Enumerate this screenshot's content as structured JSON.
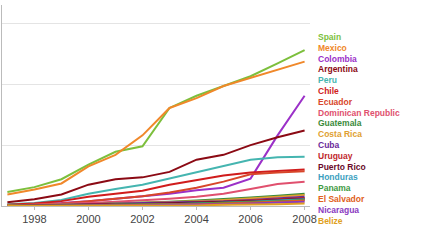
{
  "chart_data": {
    "type": "line",
    "x": [
      1997,
      1998,
      1999,
      2000,
      2001,
      2002,
      2003,
      2004,
      2005,
      2006,
      2007,
      2008
    ],
    "xlim": [
      1996.8,
      2008.2
    ],
    "xticks": [
      1998,
      2000,
      2002,
      2004,
      2006,
      2008
    ],
    "ylim": [
      0,
      330
    ],
    "yticks": [
      0,
      100,
      200,
      300
    ],
    "grid": true,
    "tick_labels": "x",
    "legend": "right",
    "series": [
      {
        "name": "Spain",
        "color": "#7cbf3c",
        "values": [
          23,
          31,
          44,
          68,
          89,
          98,
          161,
          181,
          197,
          213,
          234,
          256
        ]
      },
      {
        "name": "Mexico",
        "color": "#f0882a",
        "values": [
          19,
          27,
          37,
          65,
          84,
          116,
          161,
          177,
          197,
          210,
          224,
          237
        ]
      },
      {
        "name": "Colombia",
        "color": "#9b30c8",
        "values": [
          2,
          3,
          5,
          8,
          12,
          15,
          20,
          26,
          30,
          45,
          116,
          181
        ]
      },
      {
        "name": "Argentina",
        "color": "#8b0a14",
        "values": [
          6,
          11,
          19,
          35,
          44,
          47,
          56,
          76,
          84,
          100,
          113,
          124
        ]
      },
      {
        "name": "Peru",
        "color": "#45b5b0",
        "values": [
          3,
          5,
          10,
          20,
          28,
          35,
          45,
          55,
          65,
          76,
          80,
          81
        ]
      },
      {
        "name": "Chile",
        "color": "#d01c1c",
        "values": [
          2,
          4,
          8,
          15,
          20,
          25,
          35,
          42,
          50,
          55,
          58,
          60
        ]
      },
      {
        "name": "Ecuador",
        "color": "#d8462a",
        "values": [
          1,
          2,
          4,
          8,
          12,
          16,
          22,
          30,
          40,
          52,
          55,
          57
        ]
      },
      {
        "name": "Dominican Republic",
        "color": "#e0506e",
        "values": [
          1,
          2,
          3,
          5,
          7,
          9,
          12,
          15,
          20,
          28,
          36,
          40
        ]
      },
      {
        "name": "Guatemala",
        "color": "#3a8a3a",
        "values": [
          1,
          1,
          2,
          3,
          4,
          5,
          7,
          9,
          11,
          14,
          17,
          20
        ]
      },
      {
        "name": "Costa Rica",
        "color": "#e0a030",
        "values": [
          1,
          1,
          2,
          3,
          4,
          5,
          6,
          8,
          10,
          12,
          15,
          18
        ]
      },
      {
        "name": "Cuba",
        "color": "#6a2a9a",
        "values": [
          0,
          1,
          1,
          2,
          3,
          4,
          5,
          6,
          8,
          10,
          12,
          15
        ]
      },
      {
        "name": "Uruguay",
        "color": "#c0282c",
        "values": [
          0,
          1,
          1,
          2,
          3,
          3,
          4,
          5,
          7,
          9,
          11,
          13
        ]
      },
      {
        "name": "Puerto Rico",
        "color": "#6a0a2a",
        "values": [
          0,
          1,
          1,
          2,
          2,
          3,
          4,
          5,
          6,
          8,
          10,
          12
        ]
      },
      {
        "name": "Honduras",
        "color": "#3aa0c0",
        "values": [
          0,
          0,
          1,
          1,
          2,
          2,
          3,
          4,
          5,
          7,
          9,
          11
        ]
      },
      {
        "name": "Panama",
        "color": "#3f9a3f",
        "values": [
          0,
          0,
          1,
          1,
          2,
          2,
          3,
          4,
          5,
          6,
          8,
          10
        ]
      },
      {
        "name": "El Salvador",
        "color": "#e06020",
        "values": [
          0,
          0,
          1,
          1,
          1,
          2,
          2,
          3,
          4,
          5,
          7,
          9
        ]
      },
      {
        "name": "Nicaragua",
        "color": "#8a3ac0",
        "values": [
          0,
          0,
          0,
          1,
          1,
          1,
          2,
          2,
          3,
          4,
          5,
          7
        ]
      },
      {
        "name": "Belize",
        "color": "#e0a020",
        "values": [
          0,
          0,
          0,
          0,
          1,
          1,
          1,
          1,
          2,
          2,
          3,
          4
        ]
      }
    ]
  }
}
